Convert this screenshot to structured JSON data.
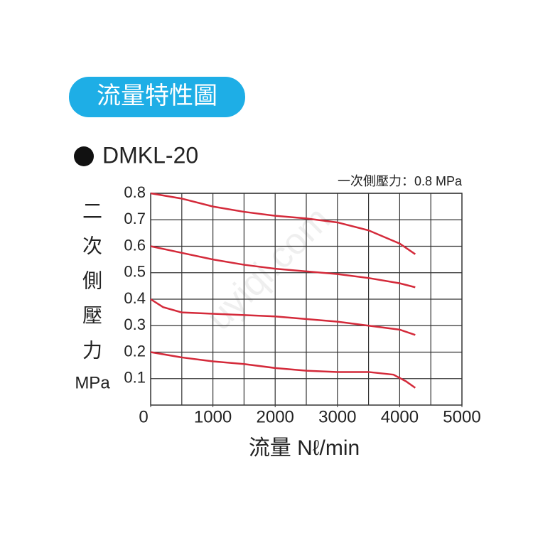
{
  "chart_data": {
    "type": "line",
    "title": "流量特性圖",
    "subtitle": "DMKL-20",
    "annotation": "一次側壓力：0.8 MPa",
    "y_label": [
      "二",
      "次",
      "側",
      "壓",
      "力"
    ],
    "y_unit": "MPa",
    "x_label": "流量 Nℓ/min",
    "watermark": "uyiqi.com",
    "xlim": [
      0,
      5000
    ],
    "xticks": [
      0,
      1000,
      2000,
      3000,
      4000,
      5000
    ],
    "xgrid": [
      500,
      1000,
      1500,
      2000,
      2500,
      3000,
      3500,
      4000,
      4500
    ],
    "ylim": [
      0,
      0.8
    ],
    "yticks": [
      0.1,
      0.2,
      0.3,
      0.4,
      0.5,
      0.6,
      0.7,
      0.8
    ],
    "grid": true,
    "series": [
      {
        "color": "#d42a3a",
        "x": [
          0,
          500,
          1000,
          1500,
          2000,
          2500,
          3000,
          3500,
          4000,
          4250
        ],
        "values": [
          0.8,
          0.78,
          0.75,
          0.73,
          0.715,
          0.705,
          0.69,
          0.66,
          0.61,
          0.57
        ]
      },
      {
        "color": "#d42a3a",
        "x": [
          0,
          500,
          1000,
          1500,
          2000,
          2500,
          3000,
          3500,
          4000,
          4250
        ],
        "values": [
          0.6,
          0.575,
          0.55,
          0.53,
          0.515,
          0.505,
          0.495,
          0.48,
          0.46,
          0.445
        ]
      },
      {
        "color": "#d42a3a",
        "x": [
          0,
          200,
          500,
          1000,
          2000,
          3000,
          3500,
          4000,
          4250
        ],
        "values": [
          0.4,
          0.37,
          0.35,
          0.345,
          0.335,
          0.315,
          0.3,
          0.285,
          0.265
        ]
      },
      {
        "color": "#d42a3a",
        "x": [
          0,
          500,
          1000,
          1500,
          2000,
          2500,
          3000,
          3500,
          3900,
          4100,
          4250
        ],
        "values": [
          0.2,
          0.18,
          0.165,
          0.155,
          0.14,
          0.13,
          0.125,
          0.125,
          0.115,
          0.09,
          0.065
        ]
      }
    ]
  }
}
